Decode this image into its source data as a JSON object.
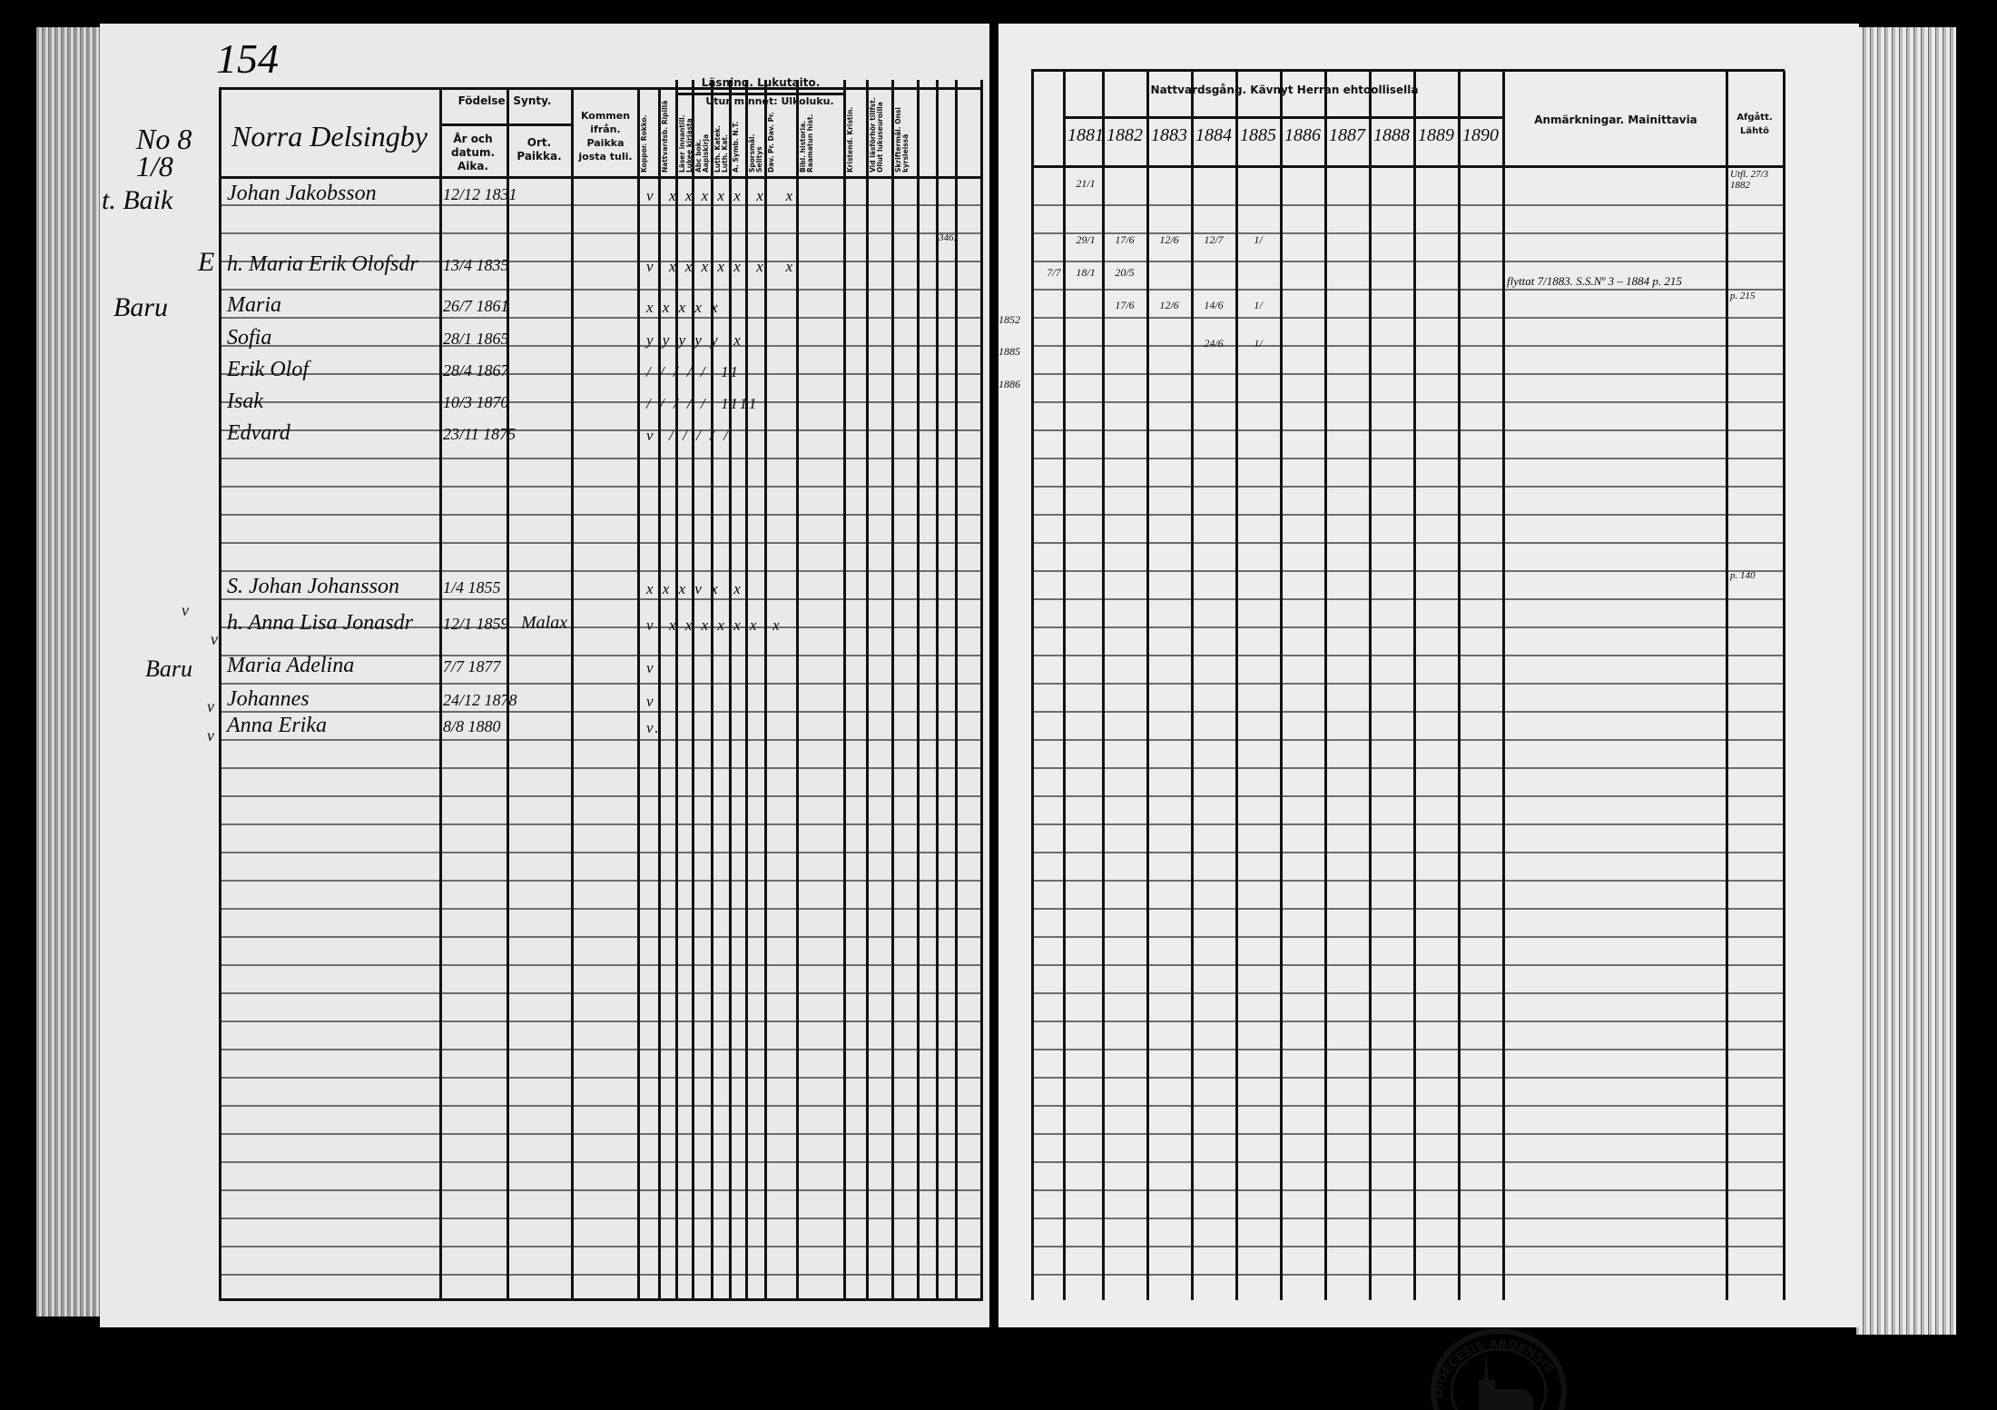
{
  "page_number": "154",
  "household_number": "No 8 1/8",
  "village": "Norra Delsingby",
  "left_header": {
    "birth": "Födelse. Synty.",
    "year_date": "År och datum. Aika.",
    "place": "Ort. Paikka.",
    "came_from": "Kommen ifrån. Paikka josta tuli.",
    "reading": "Läsning. Lukutaito.",
    "by_heart": "Utur minnet: Ulkoluku.",
    "vertical": [
      "Koppor. Rokko.",
      "Nattvardsb. Ripillä",
      "Läser innantill. Lukee kirjasta",
      "Abc bok. Aapiskirja",
      "Luth. Katek. Luth. Kat.",
      "A. Symb. N.T.",
      "Sporsmål. Selitys",
      "Dav. Pr. Dav. Pr.",
      "Bibl. historia. Raamatun hist.",
      "Kristend. Kristin.",
      "Vid läsförhör tillfst. Ollut lukuseuroilla",
      "Skriftermål. Onsi kyrsleissä"
    ]
  },
  "right_header": {
    "communion": "Nattvardsgång. Kävnyt Herran ehtoollisella",
    "years": [
      "1881",
      "1882",
      "1883",
      "1884",
      "1885",
      "1886",
      "1887",
      "1888",
      "1889",
      "1890"
    ],
    "remarks": "Anmärkningar. Mainittavia",
    "departed": "Afgått. Lähtö"
  },
  "margin_notes": [
    "t. Baik",
    "E",
    "Baru",
    "Baru",
    "v",
    "v",
    "v",
    "v"
  ],
  "persons": [
    {
      "name": "Johan Jakobsson",
      "date": "12/12 1831",
      "place": "",
      "marks": "v  x x x x x  x   x"
    },
    {
      "name": "h. Maria Erik Olofsdr",
      "date": "13/4 1835",
      "place": "",
      "marks": "v  x x x x x  x   x"
    },
    {
      "name": "Maria",
      "date": "26/7 1861",
      "place": "",
      "marks": "x x x x x"
    },
    {
      "name": "Sofia",
      "date": "28/1 1865",
      "place": "",
      "marks": "y y y y y  x"
    },
    {
      "name": "Erik Olof",
      "date": "28/4 1867",
      "place": "",
      "marks": "/ / / / /  11"
    },
    {
      "name": "Isak",
      "date": "10/3 1870",
      "place": "",
      "marks": "/ / / / /  1111"
    },
    {
      "name": "Edvard",
      "date": "23/11 1875",
      "place": "",
      "marks": "v  / / / / /"
    },
    {
      "name": "S. Johan Johansson",
      "date": "1/4 1855",
      "place": "",
      "marks": "x x x v x  x"
    },
    {
      "name": "h. Anna Lisa Jonasdr",
      "date": "12/1 1859",
      "place": "Malax",
      "marks": "v  x x x x x x  x"
    },
    {
      "name": "Maria Adelina",
      "date": "7/7 1877",
      "place": "",
      "marks": "v"
    },
    {
      "name": "Johannes",
      "date": "24/12 1878",
      "place": "",
      "marks": "v"
    },
    {
      "name": "Anna Erika",
      "date": "8/8 1880",
      "place": "",
      "marks": "v."
    }
  ],
  "side_notes": [
    "346.",
    "1852",
    "1885",
    "1886"
  ],
  "communion_marks": [
    {
      "row": "Johan Jakobsson",
      "values": [
        "21/1"
      ]
    },
    {
      "row": "",
      "values": [
        "29/1",
        "17/6",
        "12/6",
        "12/7",
        "1/"
      ]
    },
    {
      "row": "h. Maria Erik Olofsdr",
      "values": [
        "7/7",
        "18/1",
        "20/5"
      ]
    },
    {
      "row": "Maria",
      "values": [
        "17/6",
        "12/6",
        "14/6",
        "1/"
      ]
    },
    {
      "row": "Sofia",
      "values": [
        "24/6",
        "1/"
      ]
    }
  ],
  "remark_text": "flyttat 7/1883. S.S.Nº 3 – 1884 p. 215",
  "remark_page": "p. 215",
  "remark_page2": "p. 140",
  "departed_value": "Utfl. 27/3 1882",
  "stamp_text": "DIOECESIS ABOENSIS",
  "colors": {
    "paper": "#e9e9e7",
    "ink": "#111111",
    "background": "#000000"
  }
}
